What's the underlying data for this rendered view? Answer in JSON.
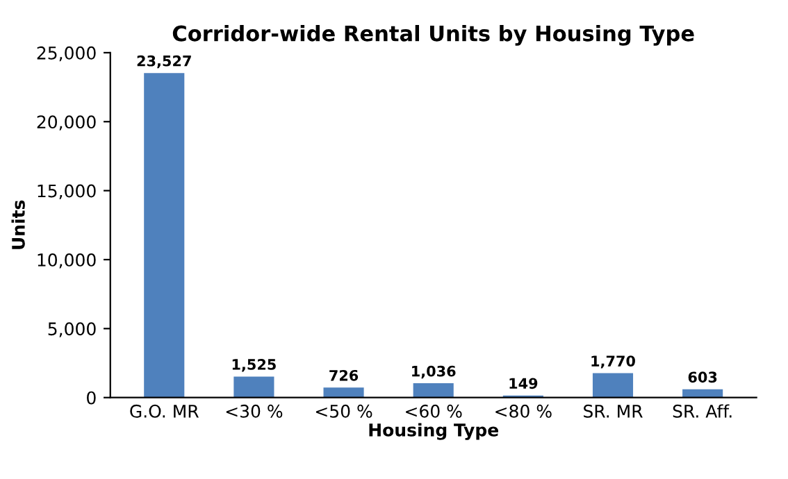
{
  "chart_data": {
    "type": "bar",
    "title": "Corridor-wide Rental Units by Housing Type",
    "xlabel": "Housing Type",
    "ylabel": "Units",
    "categories": [
      "G.O. MR",
      "<30 %",
      "<50 %",
      "<60 %",
      "<80 %",
      "SR. MR",
      "SR. Aff."
    ],
    "values": [
      23527,
      1525,
      726,
      1036,
      149,
      1770,
      603
    ],
    "value_labels": [
      "23,527",
      "1,525",
      "726",
      "1,036",
      "149",
      "1,770",
      "603"
    ],
    "color": "#4f81bd",
    "ylim": [
      0,
      25000
    ],
    "yticks": [
      {
        "value": 0,
        "label": "0"
      },
      {
        "value": 5000,
        "label": "5,000"
      },
      {
        "value": 10000,
        "label": "10,000"
      },
      {
        "value": 15000,
        "label": "15,000"
      },
      {
        "value": 20000,
        "label": "20,000"
      },
      {
        "value": 25000,
        "label": "25,000"
      }
    ],
    "grid": false,
    "legend": false
  }
}
